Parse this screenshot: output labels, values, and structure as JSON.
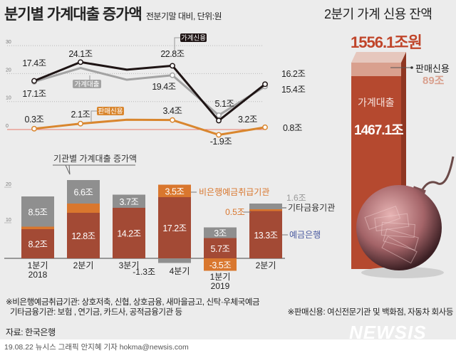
{
  "header": {
    "title": "분기별 가계대출 증가액",
    "subtitle": "전분기말 대비, 단위:원",
    "right_title": "2분기 가계 신용 잔액"
  },
  "balance": {
    "total": "1556.1조원",
    "sales_credit_label": "판매신용",
    "sales_credit_value": "89조",
    "household_loan_label": "가계대출",
    "household_loan_value": "1467.1조",
    "colors": {
      "loan": "#b5492f",
      "sales": "#d9a08e"
    },
    "illustration": "money-bomb"
  },
  "chart_data": [
    {
      "type": "line",
      "title": "분기별 가계대출 증가액",
      "categories": [
        "2018 1분기",
        "2018 2분기",
        "2018 3분기",
        "2018 4분기",
        "2019 1분기",
        "2019 2분기"
      ],
      "ylim": [
        -5,
        30
      ],
      "yticks": [
        "0",
        "10",
        "20",
        "30"
      ],
      "grid": true,
      "series": [
        {
          "name": "가계신용",
          "color": "#1e1414",
          "values": [
            17.4,
            24.1,
            21.4,
            22.8,
            3.2,
            16.2
          ],
          "labels": [
            "17.4조",
            "24.1조",
            "",
            "22.8조",
            "3.2조",
            "16.2조"
          ]
        },
        {
          "name": "가계대출",
          "color": "#a3a3a3",
          "values": [
            17.1,
            22.0,
            17.8,
            19.4,
            5.1,
            15.4
          ],
          "labels": [
            "17.1조",
            "",
            "",
            "19.4조",
            "5.1조",
            "15.4조"
          ]
        },
        {
          "name": "판매신용",
          "color": "#d9862e",
          "values": [
            0.3,
            2.1,
            3.5,
            3.4,
            -1.9,
            0.8
          ],
          "labels": [
            "0.3조",
            "2.1조",
            "",
            "3.4조",
            "-1.9조",
            "0.8조"
          ]
        }
      ]
    },
    {
      "type": "bar",
      "stacked": true,
      "title": "기관별 가계대출 증가액",
      "categories": [
        "1분기",
        "2분기",
        "3분기",
        "4분기",
        "1분기",
        "2분기"
      ],
      "year_labels": [
        "2018",
        "",
        "",
        "",
        "2019",
        ""
      ],
      "yticks": [
        "10",
        "20"
      ],
      "series": [
        {
          "name": "예금은행",
          "color": "#a34a35",
          "label_color": "#4a5aa0",
          "values": [
            8.2,
            12.8,
            14.2,
            17.2,
            5.7,
            13.3
          ],
          "labels": [
            "8.2조",
            "12.8조",
            "14.2조",
            "17.2조",
            "5.7조",
            "13.3조"
          ]
        },
        {
          "name": "비은행예금취급기관",
          "color": "#d9772e",
          "label_color": "#d9772e",
          "values": [
            0.7,
            2.6,
            0,
            3.5,
            -3.5,
            0.5
          ],
          "labels": [
            "",
            "",
            "",
            "3.5조",
            "-3.5조",
            "0.5조"
          ]
        },
        {
          "name": "기타금융기관",
          "color": "#8f8f8f",
          "label_color": "#333333",
          "values": [
            8.5,
            6.6,
            3.7,
            -1.3,
            3,
            1.6
          ],
          "labels": [
            "8.5조",
            "6.6조",
            "3.7조",
            "-1.3조",
            "3조",
            "1.6조"
          ]
        }
      ]
    }
  ],
  "notes": {
    "nonbank": "※비은행예금취급기관: 상호저축, 신협, 상호금융, 새마을금고, 신탁·우체국예금",
    "other": "기타금융기관: 보험 , 연기금, 카드사, 공적금융기관 등",
    "sales": "※판매신용: 여신전문기관 및 백화점, 자동차 회사등",
    "source": "자료: 한국은행",
    "credit": "19.08.22 뉴시스 그래픽 안지혜 기자 hokma@newsis.com",
    "logo": "NEWSIS"
  }
}
